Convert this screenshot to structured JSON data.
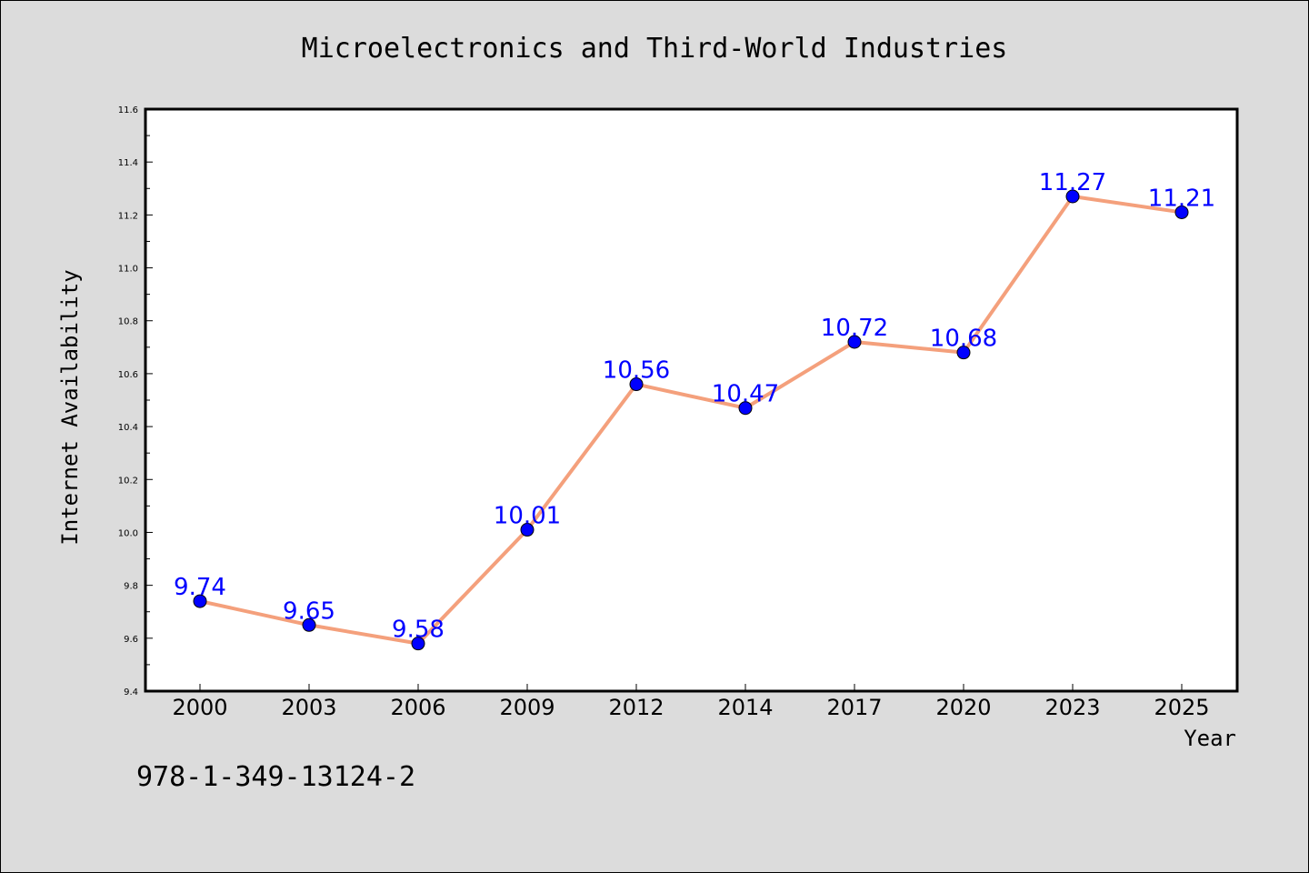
{
  "chart_data": {
    "type": "line",
    "title": "Microelectronics and Third-World Industries",
    "xlabel": "Year",
    "ylabel": "Internet Availability",
    "categories": [
      "2000",
      "2003",
      "2006",
      "2009",
      "2012",
      "2014",
      "2017",
      "2020",
      "2023",
      "2025"
    ],
    "series": [
      {
        "values": [
          9.74,
          9.65,
          9.58,
          10.01,
          10.56,
          10.47,
          10.72,
          10.68,
          11.27,
          11.21
        ]
      }
    ],
    "data_labels": [
      "9.74",
      "9.65",
      "9.58",
      "10.01",
      "10.56",
      "10.47",
      "10.72",
      "10.68",
      "11.27",
      "11.21"
    ],
    "ylim": [
      9.4,
      11.6
    ],
    "yticks": [
      "9.4",
      "9.6",
      "9.8",
      "10.0",
      "10.2",
      "10.4",
      "10.6",
      "10.8",
      "11.0",
      "11.2",
      "11.4",
      "11.6"
    ],
    "grid": false,
    "legend": "none",
    "colors": {
      "line": "#f4a07c",
      "marker": "#0000ff",
      "data_label": "#0000ff",
      "plot_background": "#ffffff",
      "figure_background": "#dcdcdc"
    }
  },
  "annotation": {
    "isbn": "978-1-349-13124-2"
  }
}
